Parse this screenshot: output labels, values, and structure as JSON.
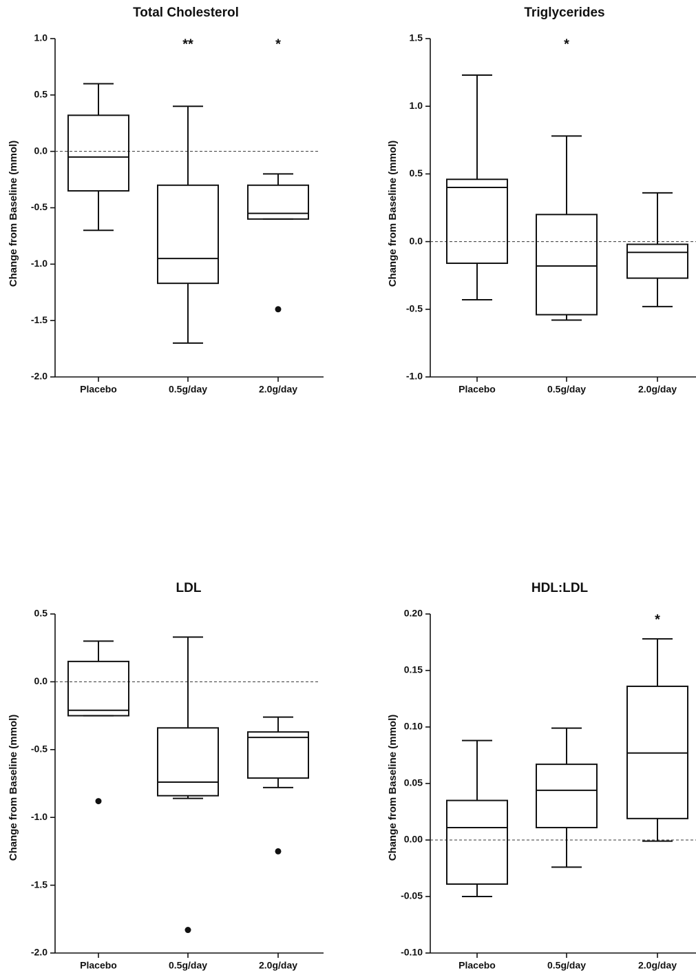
{
  "chart_data": [
    {
      "type": "box",
      "title": "Total Cholesterol",
      "xlabel": "",
      "ylabel": "Change from Baseline (mmol)",
      "ylim": [
        -2.0,
        1.0
      ],
      "yticks": [
        1.0,
        0.5,
        0.0,
        -0.5,
        -1.0,
        -1.5,
        -2.0
      ],
      "ytick_labels": [
        "1.0",
        "0.5",
        "0.0",
        "-0.5",
        "-1.0",
        "-1.5",
        "-2.0"
      ],
      "reference_line": 0.0,
      "categories": [
        "Placebo",
        "0.5g/day",
        "2.0g/day"
      ],
      "boxes": [
        {
          "category": "Placebo",
          "whisker_low": -0.7,
          "q1": -0.35,
          "median": -0.05,
          "q3": 0.32,
          "whisker_high": 0.6,
          "outliers": [],
          "significance": ""
        },
        {
          "category": "0.5g/day",
          "whisker_low": -1.7,
          "q1": -1.17,
          "median": -0.95,
          "q3": -0.3,
          "whisker_high": 0.4,
          "outliers": [],
          "significance": "**"
        },
        {
          "category": "2.0g/day",
          "whisker_low": -0.6,
          "q1": -0.6,
          "median": -0.55,
          "q3": -0.3,
          "whisker_high": -0.2,
          "outliers": [
            -1.4
          ],
          "significance": "*"
        }
      ]
    },
    {
      "type": "box",
      "title": "Triglycerides",
      "xlabel": "",
      "ylabel": "Change from Baseline (mmol)",
      "ylim": [
        -1.0,
        1.5
      ],
      "yticks": [
        1.5,
        1.0,
        0.5,
        0.0,
        -0.5,
        -1.0
      ],
      "ytick_labels": [
        "1.5",
        "1.0",
        "0.5",
        "0.0",
        "-0.5",
        "-1.0"
      ],
      "reference_line": 0.0,
      "categories": [
        "Placebo",
        "0.5g/day",
        "2.0g/day"
      ],
      "boxes": [
        {
          "category": "Placebo",
          "whisker_low": -0.43,
          "q1": -0.16,
          "median": 0.4,
          "q3": 0.46,
          "whisker_high": 1.23,
          "outliers": [],
          "significance": ""
        },
        {
          "category": "0.5g/day",
          "whisker_low": -0.58,
          "q1": -0.54,
          "median": -0.18,
          "q3": 0.2,
          "whisker_high": 0.78,
          "outliers": [],
          "significance": "*"
        },
        {
          "category": "2.0g/day",
          "whisker_low": -0.48,
          "q1": -0.27,
          "median": -0.08,
          "q3": -0.02,
          "whisker_high": 0.36,
          "outliers": [],
          "significance": ""
        }
      ]
    },
    {
      "type": "box",
      "title": "LDL",
      "xlabel": "",
      "ylabel": "Change from Baseline (mmol)",
      "ylim": [
        -2.0,
        0.5
      ],
      "yticks": [
        0.5,
        0.0,
        -0.5,
        -1.0,
        -1.5,
        -2.0
      ],
      "ytick_labels": [
        "0.5",
        "0.0",
        "-0.5",
        "-1.0",
        "-1.5",
        "-2.0"
      ],
      "reference_line": 0.0,
      "categories": [
        "Placebo",
        "0.5g/day",
        "2.0g/day"
      ],
      "boxes": [
        {
          "category": "Placebo",
          "whisker_low": -0.25,
          "q1": -0.25,
          "median": -0.21,
          "q3": 0.15,
          "whisker_high": 0.3,
          "outliers": [
            -0.88
          ],
          "significance": ""
        },
        {
          "category": "0.5g/day",
          "whisker_low": -0.86,
          "q1": -0.84,
          "median": -0.74,
          "q3": -0.34,
          "whisker_high": 0.33,
          "outliers": [
            -1.83
          ],
          "significance": ""
        },
        {
          "category": "2.0g/day",
          "whisker_low": -0.78,
          "q1": -0.71,
          "median": -0.41,
          "q3": -0.37,
          "whisker_high": -0.26,
          "outliers": [
            -1.25
          ],
          "significance": ""
        }
      ]
    },
    {
      "type": "box",
      "title": "HDL:LDL",
      "xlabel": "",
      "ylabel": "Change from Baseline (mmol)",
      "ylim": [
        -0.1,
        0.2
      ],
      "yticks": [
        0.2,
        0.15,
        0.1,
        0.05,
        0.0,
        -0.05,
        -0.1
      ],
      "ytick_labels": [
        "0.20",
        "0.15",
        "0.10",
        "0.05",
        "0.00",
        "-0.05",
        "-0.10"
      ],
      "reference_line": 0.0,
      "categories": [
        "Placebo",
        "0.5g/day",
        "2.0g/day"
      ],
      "boxes": [
        {
          "category": "Placebo",
          "whisker_low": -0.05,
          "q1": -0.039,
          "median": 0.011,
          "q3": 0.035,
          "whisker_high": 0.088,
          "outliers": [],
          "significance": ""
        },
        {
          "category": "0.5g/day",
          "whisker_low": -0.024,
          "q1": 0.011,
          "median": 0.044,
          "q3": 0.067,
          "whisker_high": 0.099,
          "outliers": [],
          "significance": ""
        },
        {
          "category": "2.0g/day",
          "whisker_low": -0.001,
          "q1": 0.019,
          "median": 0.077,
          "q3": 0.136,
          "whisker_high": 0.178,
          "outliers": [],
          "significance": "*"
        }
      ]
    }
  ]
}
